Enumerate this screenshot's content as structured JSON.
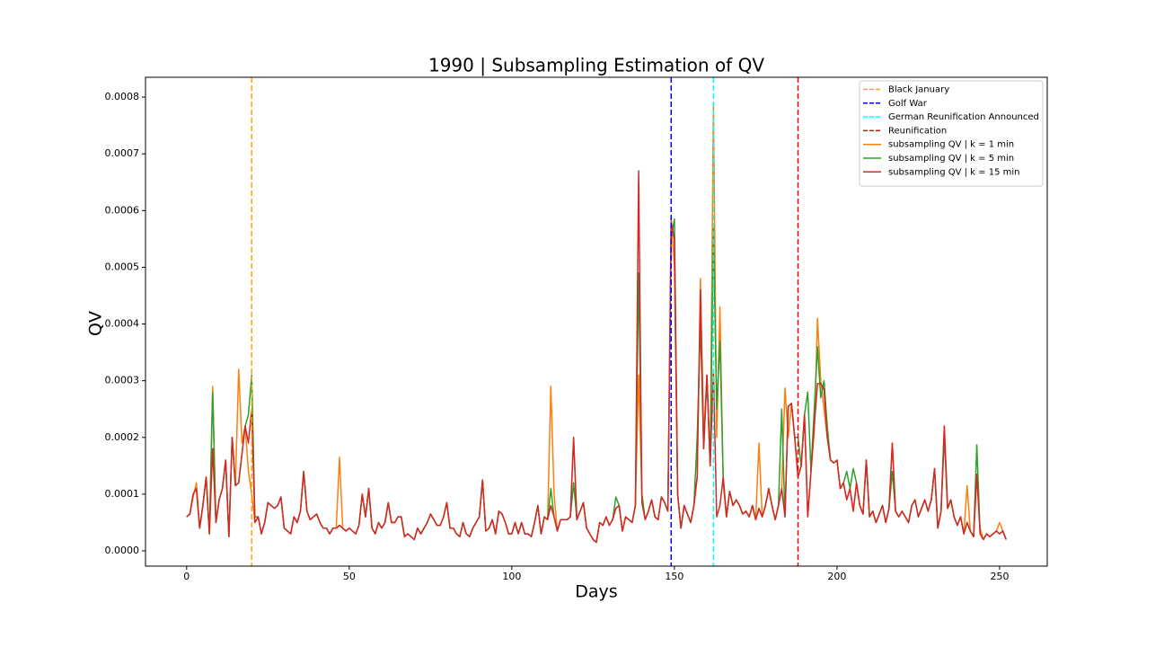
{
  "chart_data": {
    "type": "line",
    "title": "1990 | Subsampling Estimation of QV",
    "x_label": "Days",
    "y_label": "QV",
    "xlim": [
      -12.65,
      264.65
    ],
    "xticks": [
      0,
      50,
      100,
      150,
      200,
      250
    ],
    "ylim": [
      -2.69e-05,
      0.000835
    ],
    "yticks": [
      {
        "value": 0,
        "label": "0.0000"
      },
      {
        "value": 0.0001,
        "label": "0.0001"
      },
      {
        "value": 0.0002,
        "label": "0.0002"
      },
      {
        "value": 0.0003,
        "label": "0.0003"
      },
      {
        "value": 0.0004,
        "label": "0.0004"
      },
      {
        "value": 0.0005,
        "label": "0.0005"
      },
      {
        "value": 0.0006,
        "label": "0.0006"
      },
      {
        "value": 0.0007,
        "label": "0.0007"
      },
      {
        "value": 0.0008,
        "label": "0.0008"
      }
    ],
    "legend": "upper right",
    "events": [
      {
        "name": "Black January",
        "x": 20,
        "color": "#ffa500"
      },
      {
        "name": "Golf War",
        "x": 149,
        "color": "#0000ff"
      },
      {
        "name": "German Reunification Announced",
        "x": 162,
        "color": "#00ffff"
      },
      {
        "name": "Reunification",
        "x": 188,
        "color": "#ff0000"
      }
    ],
    "x": [
      0,
      1,
      2,
      3,
      4,
      5,
      6,
      7,
      8,
      9,
      10,
      11,
      12,
      13,
      14,
      15,
      16,
      17,
      18,
      19,
      20,
      21,
      22,
      23,
      24,
      25,
      26,
      27,
      28,
      29,
      30,
      31,
      32,
      33,
      34,
      35,
      36,
      37,
      38,
      39,
      40,
      41,
      42,
      43,
      44,
      45,
      46,
      47,
      48,
      49,
      50,
      51,
      52,
      53,
      54,
      55,
      56,
      57,
      58,
      59,
      60,
      61,
      62,
      63,
      64,
      65,
      66,
      67,
      68,
      69,
      70,
      71,
      72,
      73,
      74,
      75,
      76,
      77,
      78,
      79,
      80,
      81,
      82,
      83,
      84,
      85,
      86,
      87,
      88,
      89,
      90,
      91,
      92,
      93,
      94,
      95,
      96,
      97,
      98,
      99,
      100,
      101,
      102,
      103,
      104,
      105,
      106,
      107,
      108,
      109,
      110,
      111,
      112,
      113,
      114,
      115,
      116,
      117,
      118,
      119,
      120,
      121,
      122,
      123,
      124,
      125,
      126,
      127,
      128,
      129,
      130,
      131,
      132,
      133,
      134,
      135,
      136,
      137,
      138,
      139,
      140,
      141,
      142,
      143,
      144,
      145,
      146,
      147,
      148,
      149,
      150,
      151,
      152,
      153,
      154,
      155,
      156,
      157,
      158,
      159,
      160,
      161,
      162,
      163,
      164,
      165,
      166,
      167,
      168,
      169,
      170,
      171,
      172,
      173,
      174,
      175,
      176,
      177,
      178,
      179,
      180,
      181,
      182,
      183,
      184,
      185,
      186,
      187,
      188,
      189,
      190,
      191,
      192,
      193,
      194,
      195,
      196,
      197,
      198,
      199,
      200,
      201,
      202,
      203,
      204,
      205,
      206,
      207,
      208,
      209,
      210,
      211,
      212,
      213,
      214,
      215,
      216,
      217,
      218,
      219,
      220,
      221,
      222,
      223,
      224,
      225,
      226,
      227,
      228,
      229,
      230,
      231,
      232,
      233,
      234,
      235,
      236,
      237,
      238,
      239,
      240,
      241,
      242,
      243,
      244,
      245,
      246,
      247,
      248,
      249,
      250,
      251,
      252
    ],
    "series": [
      {
        "name": "subsampling QV | k = 1 min",
        "color": "#ff7f0e",
        "values": [
          6e-05,
          6.5e-05,
          9.5e-05,
          0.00012,
          4e-05,
          8e-05,
          0.00013,
          3e-05,
          0.00029,
          5e-05,
          9e-05,
          0.00011,
          0.00016,
          2.5e-05,
          0.0002,
          0.000115,
          0.00032,
          0.00019,
          0.00022,
          0.00014,
          0.0001,
          5e-05,
          6e-05,
          3e-05,
          5e-05,
          8.5e-05,
          8e-05,
          7.5e-05,
          8e-05,
          9.5e-05,
          4e-05,
          3.5e-05,
          3e-05,
          6e-05,
          5e-05,
          7e-05,
          0.00014,
          7e-05,
          5.5e-05,
          6e-05,
          6.5e-05,
          5e-05,
          4e-05,
          4e-05,
          3e-05,
          4e-05,
          4e-05,
          0.000165,
          4e-05,
          3.5e-05,
          4e-05,
          3.5e-05,
          3e-05,
          4.5e-05,
          0.0001,
          6e-05,
          0.00011,
          4e-05,
          3e-05,
          5e-05,
          4e-05,
          5e-05,
          8.5e-05,
          5e-05,
          5e-05,
          6e-05,
          6e-05,
          2.5e-05,
          3e-05,
          2.5e-05,
          2e-05,
          4e-05,
          3e-05,
          4e-05,
          5e-05,
          6.5e-05,
          5.5e-05,
          4.5e-05,
          4.5e-05,
          6e-05,
          8.5e-05,
          4e-05,
          4e-05,
          3e-05,
          2.5e-05,
          5e-05,
          3e-05,
          2.5e-05,
          4e-05,
          5e-05,
          6e-05,
          0.000125,
          3.5e-05,
          4e-05,
          5.5e-05,
          3e-05,
          7e-05,
          6.5e-05,
          5e-05,
          3e-05,
          3e-05,
          5e-05,
          3e-05,
          5e-05,
          3e-05,
          3e-05,
          2.5e-05,
          5e-05,
          8e-05,
          3e-05,
          6e-05,
          5.5e-05,
          0.00029,
          0.0001,
          3.5e-05,
          5.5e-05,
          5.5e-05,
          5.5e-05,
          6e-05,
          0.0002,
          5.5e-05,
          7e-05,
          8.5e-05,
          4e-05,
          3e-05,
          2e-05,
          1.5e-05,
          5e-05,
          4.5e-05,
          6e-05,
          4.5e-05,
          5.5e-05,
          7.5e-05,
          8e-05,
          3.5e-05,
          6e-05,
          5.5e-05,
          5e-05,
          8e-05,
          0.00031,
          0.0001,
          5.5e-05,
          7e-05,
          9e-05,
          6e-05,
          5.5e-05,
          9.5e-05,
          8.5e-05,
          7e-05,
          0.00059,
          0.0005,
          0.0001,
          4e-05,
          8e-05,
          6.5e-05,
          5e-05,
          8e-05,
          0.00013,
          0.00048,
          0.0002,
          0.00031,
          0.00015,
          0.00079,
          0.0002,
          0.00043,
          0.00012,
          6e-05,
          0.000105,
          8e-05,
          9e-05,
          8e-05,
          6.5e-05,
          7e-05,
          6e-05,
          8e-05,
          5.5e-05,
          0.00019,
          6e-05,
          8e-05,
          0.00011,
          8e-05,
          5.5e-05,
          8e-05,
          0.00011,
          0.000287,
          0.0002,
          0.00026,
          0.0002,
          0.00013,
          0.00015,
          0.00024,
          6e-05,
          0.00014,
          0.00021,
          0.00041,
          0.0003,
          0.00025,
          0.0002,
          0.00016,
          0.000155,
          0.00016,
          0.00011,
          0.00012,
          9e-05,
          0.00011,
          7e-05,
          0.00012,
          8e-05,
          6.5e-05,
          0.00016,
          6e-05,
          7e-05,
          5e-05,
          6.5e-05,
          8e-05,
          5e-05,
          7.5e-05,
          0.00019,
          7e-05,
          6e-05,
          7e-05,
          6e-05,
          5e-05,
          8e-05,
          9e-05,
          6e-05,
          7.5e-05,
          9e-05,
          7e-05,
          9e-05,
          0.000145,
          4e-05,
          7e-05,
          0.00022,
          7.5e-05,
          9e-05,
          6e-05,
          4.5e-05,
          6e-05,
          3e-05,
          0.000115,
          3.5e-05,
          2.5e-05,
          0.000135,
          4e-05,
          2e-05,
          3e-05,
          2.5e-05,
          3e-05,
          3.5e-05,
          5e-05,
          3.5e-05,
          2e-05
        ]
      },
      {
        "name": "subsampling QV | k = 5 min",
        "color": "#2ca02c",
        "values": [
          6e-05,
          6.5e-05,
          0.0001,
          0.00011,
          4e-05,
          8e-05,
          0.00013,
          3e-05,
          0.00028,
          5e-05,
          9e-05,
          0.00011,
          0.00016,
          2.5e-05,
          0.0002,
          0.000115,
          0.00012,
          0.00017,
          0.00022,
          0.00024,
          0.00031,
          6e-05,
          6e-05,
          3e-05,
          5e-05,
          8.5e-05,
          8e-05,
          7.5e-05,
          8e-05,
          9.5e-05,
          4e-05,
          3.5e-05,
          3e-05,
          6e-05,
          5e-05,
          7e-05,
          0.00014,
          7e-05,
          5.5e-05,
          6e-05,
          6.5e-05,
          5e-05,
          4e-05,
          4e-05,
          3e-05,
          4e-05,
          4e-05,
          4.5e-05,
          4e-05,
          3.5e-05,
          4e-05,
          3.5e-05,
          3e-05,
          4.5e-05,
          0.0001,
          6e-05,
          0.00011,
          4e-05,
          3e-05,
          5e-05,
          4e-05,
          5e-05,
          8.5e-05,
          5e-05,
          5e-05,
          6e-05,
          6e-05,
          2.5e-05,
          3e-05,
          2.5e-05,
          2e-05,
          4e-05,
          3e-05,
          4e-05,
          5e-05,
          6.5e-05,
          5.5e-05,
          4.5e-05,
          4.5e-05,
          6e-05,
          8.5e-05,
          4e-05,
          4e-05,
          3e-05,
          2.5e-05,
          5e-05,
          3e-05,
          2.5e-05,
          4e-05,
          5e-05,
          6e-05,
          0.000125,
          3.5e-05,
          4e-05,
          5.5e-05,
          3e-05,
          7e-05,
          6.5e-05,
          5e-05,
          3e-05,
          3e-05,
          5e-05,
          3e-05,
          5e-05,
          3e-05,
          3e-05,
          2.5e-05,
          5e-05,
          8e-05,
          3e-05,
          6e-05,
          5.5e-05,
          0.00011,
          6e-05,
          3.5e-05,
          5.5e-05,
          5.5e-05,
          5.5e-05,
          6e-05,
          0.00012,
          5.5e-05,
          7e-05,
          8.5e-05,
          4e-05,
          3e-05,
          2e-05,
          1.5e-05,
          5e-05,
          4.5e-05,
          6e-05,
          4.5e-05,
          5.5e-05,
          9.5e-05,
          8e-05,
          3.5e-05,
          6e-05,
          5.5e-05,
          5e-05,
          8e-05,
          0.00049,
          0.0001,
          5.5e-05,
          7e-05,
          9e-05,
          6e-05,
          5.5e-05,
          9.5e-05,
          8.5e-05,
          7e-05,
          0.00055,
          0.000585,
          0.0001,
          4e-05,
          8e-05,
          6.5e-05,
          5e-05,
          8e-05,
          0.0002,
          0.0004,
          0.00018,
          0.00031,
          0.00015,
          0.000568,
          0.00025,
          0.00037,
          0.00013,
          6e-05,
          0.000105,
          8e-05,
          9e-05,
          8e-05,
          6.5e-05,
          7e-05,
          6e-05,
          8e-05,
          5.5e-05,
          7.5e-05,
          6e-05,
          8e-05,
          0.00011,
          8e-05,
          5.5e-05,
          8e-05,
          0.00025,
          6e-05,
          0.000255,
          0.00026,
          0.0002,
          0.0002,
          0.00015,
          0.00024,
          0.00028,
          0.00014,
          0.00025,
          0.00036,
          0.00027,
          0.0003,
          0.00022,
          0.00016,
          0.000155,
          0.00016,
          0.00011,
          0.00012,
          0.00014,
          0.00011,
          0.000145,
          0.00012,
          8e-05,
          6.5e-05,
          0.00016,
          6e-05,
          7e-05,
          5e-05,
          6.5e-05,
          8e-05,
          5e-05,
          7.5e-05,
          0.00014,
          7e-05,
          6e-05,
          7e-05,
          6e-05,
          5e-05,
          8e-05,
          9e-05,
          6e-05,
          7.5e-05,
          9e-05,
          7e-05,
          9e-05,
          0.000145,
          4e-05,
          7e-05,
          0.0002,
          7.5e-05,
          9e-05,
          6e-05,
          4.5e-05,
          6e-05,
          3e-05,
          5e-05,
          3.5e-05,
          2.5e-05,
          0.000187,
          3e-05,
          2e-05,
          3e-05,
          2.5e-05,
          3e-05,
          3.5e-05,
          3e-05,
          3.5e-05,
          2e-05
        ]
      },
      {
        "name": "subsampling QV | k = 15 min",
        "color": "#d62728",
        "values": [
          6e-05,
          6.5e-05,
          0.0001,
          0.00011,
          4e-05,
          8e-05,
          0.00013,
          3e-05,
          0.00018,
          5e-05,
          9e-05,
          0.00011,
          0.00016,
          2.5e-05,
          0.0002,
          0.000115,
          0.00012,
          0.00017,
          0.00022,
          0.00019,
          0.00025,
          5e-05,
          6e-05,
          3e-05,
          5e-05,
          8.5e-05,
          8e-05,
          7.5e-05,
          8e-05,
          9.5e-05,
          4e-05,
          3.5e-05,
          3e-05,
          6e-05,
          5e-05,
          7e-05,
          0.00014,
          7e-05,
          5.5e-05,
          6e-05,
          6.5e-05,
          5e-05,
          4e-05,
          4e-05,
          3e-05,
          4e-05,
          4e-05,
          4.5e-05,
          4e-05,
          3.5e-05,
          4e-05,
          3.5e-05,
          3e-05,
          4.5e-05,
          0.0001,
          6e-05,
          0.00011,
          4e-05,
          3e-05,
          5e-05,
          4e-05,
          5e-05,
          8.5e-05,
          5e-05,
          5e-05,
          6e-05,
          6e-05,
          2.5e-05,
          3e-05,
          2.5e-05,
          2e-05,
          4e-05,
          3e-05,
          4e-05,
          5e-05,
          6.5e-05,
          5.5e-05,
          4.5e-05,
          4.5e-05,
          6e-05,
          8.5e-05,
          4e-05,
          4e-05,
          3e-05,
          2.5e-05,
          5e-05,
          3e-05,
          2.5e-05,
          4e-05,
          5e-05,
          6e-05,
          0.000125,
          3.5e-05,
          4e-05,
          5.5e-05,
          3e-05,
          7e-05,
          6.5e-05,
          5e-05,
          3e-05,
          3e-05,
          5e-05,
          3e-05,
          5e-05,
          3e-05,
          3e-05,
          2.5e-05,
          5e-05,
          8e-05,
          3e-05,
          6e-05,
          5.5e-05,
          8e-05,
          6e-05,
          3.5e-05,
          5.5e-05,
          5.5e-05,
          5.5e-05,
          6e-05,
          0.0002,
          5.5e-05,
          7e-05,
          8.5e-05,
          4e-05,
          3e-05,
          2e-05,
          1.5e-05,
          5e-05,
          4.5e-05,
          6e-05,
          4.5e-05,
          5.5e-05,
          7.5e-05,
          8e-05,
          3.5e-05,
          6e-05,
          5.5e-05,
          5e-05,
          8e-05,
          0.00067,
          8.5e-05,
          5.5e-05,
          7e-05,
          9e-05,
          6e-05,
          5.5e-05,
          9.5e-05,
          8.5e-05,
          7e-05,
          0.00058,
          0.00055,
          0.0001,
          4e-05,
          8e-05,
          6.5e-05,
          5e-05,
          8e-05,
          0.00013,
          0.00046,
          0.00018,
          0.00031,
          0.00015,
          0.00032,
          6e-05,
          8e-05,
          0.00013,
          6e-05,
          0.000105,
          8e-05,
          9e-05,
          8e-05,
          6.5e-05,
          7e-05,
          6e-05,
          8e-05,
          5.5e-05,
          7.5e-05,
          6e-05,
          8e-05,
          0.00011,
          8e-05,
          5.5e-05,
          8e-05,
          0.00011,
          6e-05,
          0.000255,
          0.00026,
          0.0002,
          0.00013,
          0.00015,
          0.00024,
          6e-05,
          0.00014,
          0.00022,
          0.000295,
          0.000295,
          0.000285,
          0.0002,
          0.00016,
          0.000155,
          0.00016,
          0.00011,
          0.00012,
          9e-05,
          0.00011,
          7e-05,
          0.00012,
          8e-05,
          6.5e-05,
          0.00016,
          6e-05,
          7e-05,
          5e-05,
          6.5e-05,
          8e-05,
          5e-05,
          7.5e-05,
          0.00019,
          7e-05,
          6e-05,
          7e-05,
          6e-05,
          5e-05,
          8e-05,
          9e-05,
          6e-05,
          7.5e-05,
          9e-05,
          7e-05,
          9e-05,
          0.000145,
          4e-05,
          7e-05,
          0.00022,
          7.5e-05,
          9e-05,
          6e-05,
          4.5e-05,
          6e-05,
          3e-05,
          5e-05,
          3.5e-05,
          2.5e-05,
          0.000135,
          3e-05,
          2e-05,
          3e-05,
          2.5e-05,
          3e-05,
          3.5e-05,
          3e-05,
          3.5e-05,
          2e-05
        ]
      }
    ]
  }
}
